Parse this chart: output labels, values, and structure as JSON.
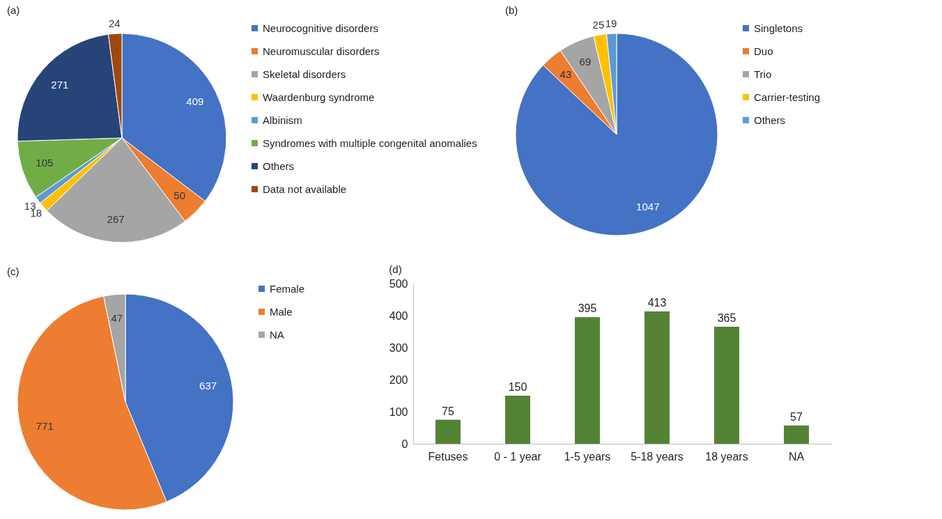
{
  "chart_data": [
    {
      "type": "pie",
      "title": "(a)",
      "categories": [
        "Neurocognitive disorders",
        "Neuromuscular disorders",
        "Skeletal disorders",
        "Waardenburg syndrome",
        "Albinism",
        "Syndromes with multiple congenital anomalies",
        "Others",
        "Data not available"
      ],
      "values": [
        409,
        50,
        267,
        18,
        13,
        105,
        271,
        24
      ],
      "colors": [
        "#4472c4",
        "#ed7d31",
        "#a5a5a5",
        "#ffc000",
        "#5b9bd5",
        "#70ad47",
        "#264478",
        "#9e480e"
      ],
      "data_labels": true,
      "legend": "right"
    },
    {
      "type": "pie",
      "title": "(b)",
      "categories": [
        "Singletons",
        "Duo",
        "Trio",
        "Carrier-testing",
        "Others"
      ],
      "values": [
        1047,
        43,
        69,
        25,
        19
      ],
      "colors": [
        "#4472c4",
        "#ed7d31",
        "#a5a5a5",
        "#ffc000",
        "#5b9bd5"
      ],
      "data_labels": true,
      "legend": "right"
    },
    {
      "type": "pie",
      "title": "(c)",
      "categories": [
        "Female",
        "Male",
        "NA"
      ],
      "values": [
        637,
        771,
        47
      ],
      "colors": [
        "#4472c4",
        "#ed7d31",
        "#a5a5a5"
      ],
      "data_labels": true,
      "legend": "right"
    },
    {
      "type": "bar",
      "title": "(d)",
      "categories": [
        "Fetuses",
        "0 - 1 year",
        "1-5 years",
        "5-18 years",
        "18 years",
        "NA"
      ],
      "values": [
        75,
        150,
        395,
        413,
        365,
        57
      ],
      "color": "#548235",
      "ylim": [
        0,
        500
      ],
      "yticks": [
        0,
        100,
        200,
        300,
        400,
        500
      ],
      "data_labels": true,
      "grid": false
    }
  ]
}
